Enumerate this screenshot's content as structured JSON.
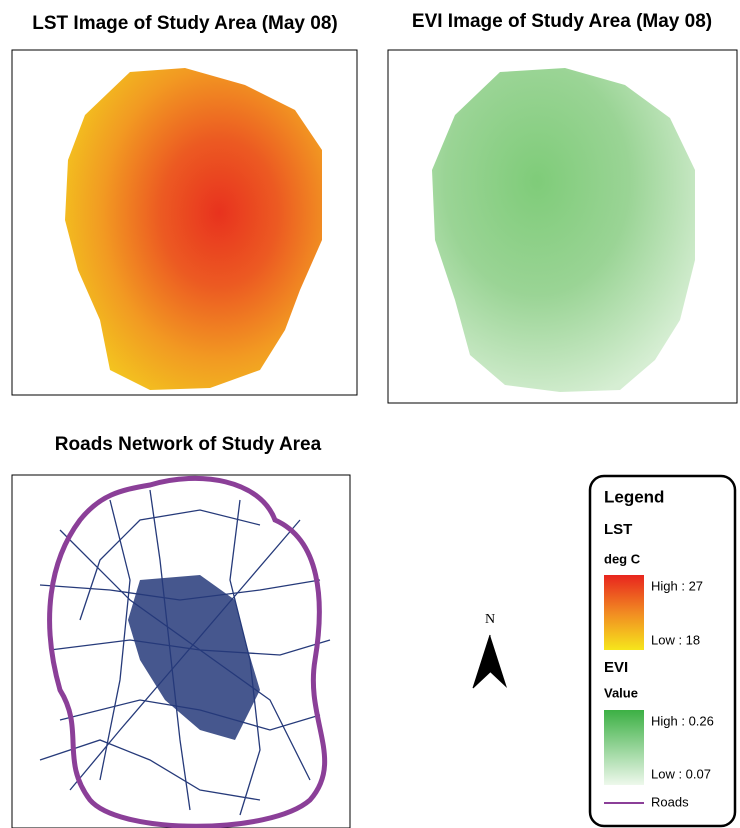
{
  "panels": [
    {
      "title": "LST Image of Study Area (May 08)"
    },
    {
      "title": "EVI Image of Study Area (May 08)"
    },
    {
      "title": "Roads Network of Study Area"
    }
  ],
  "north": "N",
  "legend": {
    "title": "Legend",
    "lst": {
      "heading": "LST",
      "unit": "deg C",
      "high": "High : 27",
      "low": "Low : 18"
    },
    "evi": {
      "heading": "EVI",
      "unit": "Value",
      "high": "High : 0.26",
      "low": "Low : 0.07"
    },
    "roads": "Roads"
  }
}
